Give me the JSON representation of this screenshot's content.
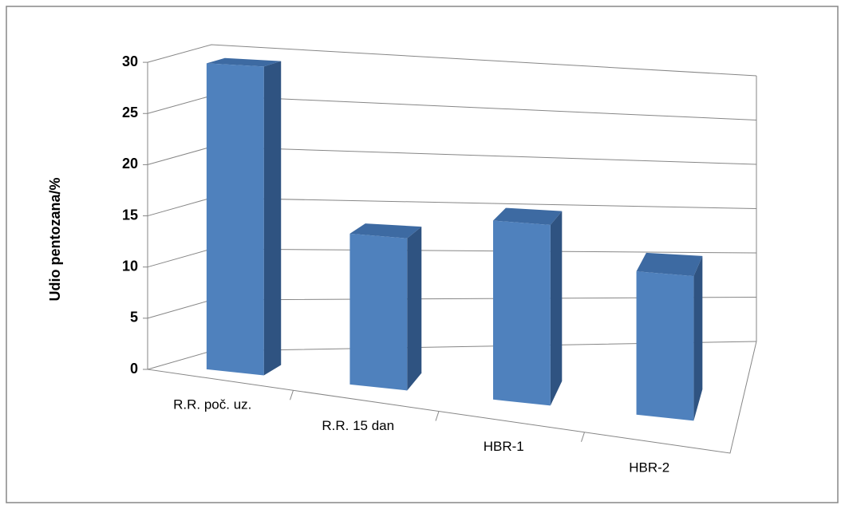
{
  "chart_data": {
    "type": "bar3d",
    "y_label": "Udio pentozana/%",
    "categories": [
      "R.R. poč. uz.",
      "R.R. 15 dan",
      "HBR-1",
      "HBR-2"
    ],
    "values": [
      29.7,
      14.3,
      16.6,
      13.0
    ],
    "color": "#4f81bd",
    "ylim": [
      0,
      30
    ],
    "yticks": [
      0,
      5,
      10,
      15,
      20,
      25,
      30
    ],
    "grid": true
  }
}
